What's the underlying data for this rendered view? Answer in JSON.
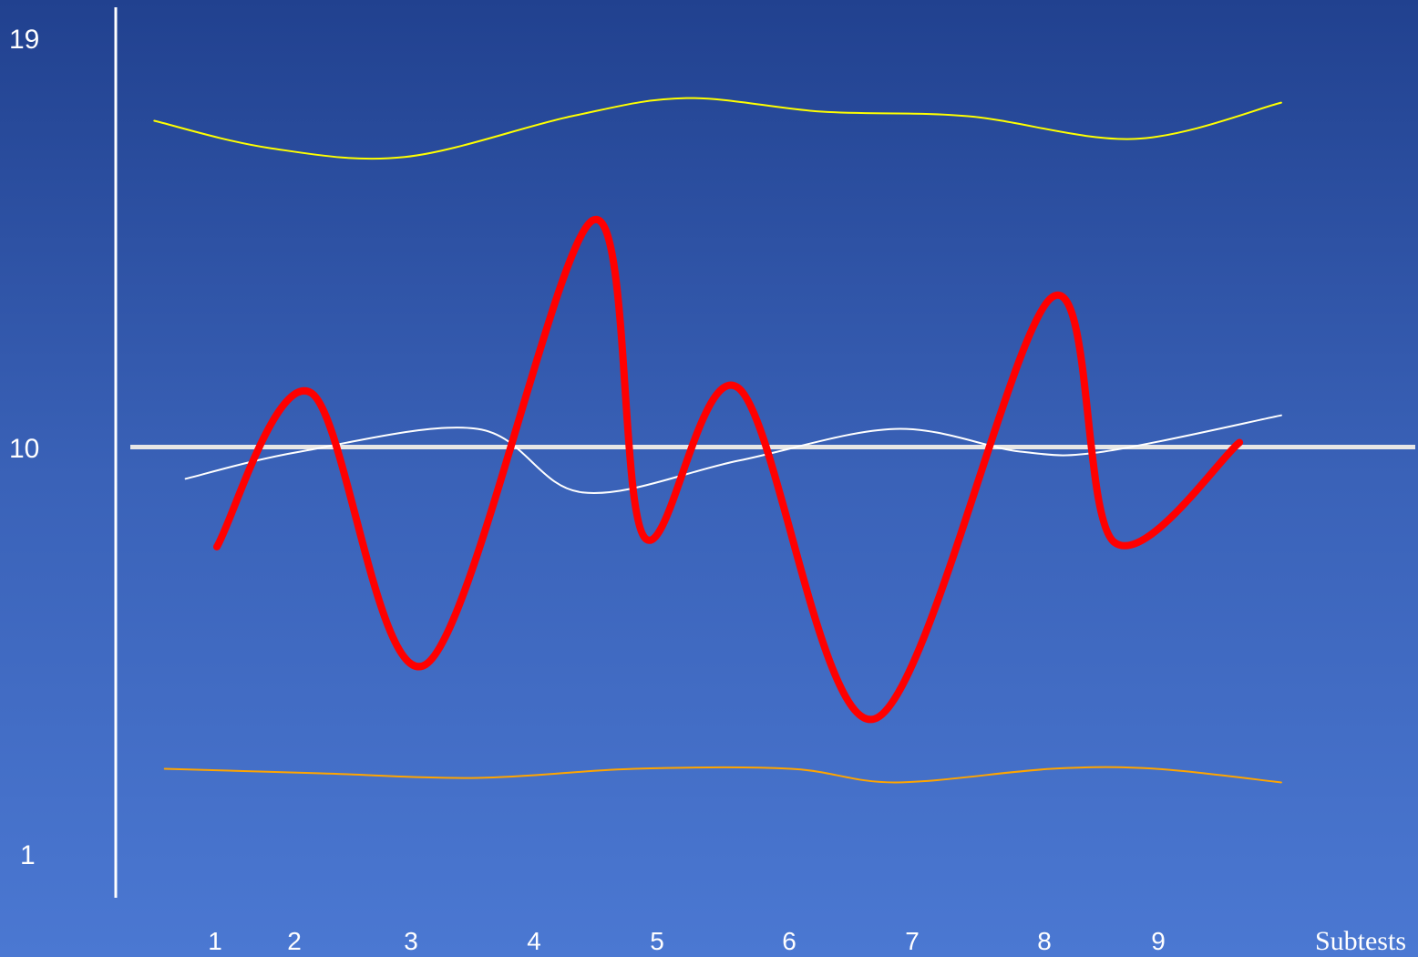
{
  "chart_data": {
    "type": "line",
    "title": "",
    "xlabel": "Subtests",
    "ylabel": "",
    "ylim": [
      1,
      19
    ],
    "yticks": [
      19,
      10,
      1
    ],
    "categories": [
      "1",
      "2",
      "3",
      "4",
      "5",
      "6",
      "7",
      "8",
      "9"
    ],
    "reference_value": 10,
    "legend": "none",
    "grid": false,
    "series": [
      {
        "color": "#ff0000",
        "style": "thick",
        "x": [
          1,
          1.9,
          3,
          4.6,
          5.1,
          6,
          7.3,
          9,
          9.6,
          10.8
        ],
        "y": [
          7.8,
          11.2,
          5.2,
          15.0,
          8.0,
          11.3,
          4.0,
          13.3,
          7.9,
          10.1
        ]
      },
      {
        "color": "#ffffff",
        "style": "thin",
        "x": [
          0.7,
          1.8,
          3.5,
          4.5,
          6,
          7.5,
          8.7,
          9.5,
          11.2
        ],
        "y": [
          9.3,
          9.9,
          10.4,
          9.0,
          9.7,
          10.4,
          9.9,
          9.9,
          10.7
        ]
      },
      {
        "color": "#ffff00",
        "style": "thin",
        "x": [
          0.4,
          1.5,
          2.8,
          4.4,
          5.5,
          6.8,
          8.2,
          9.8,
          11.2
        ],
        "y": [
          17.2,
          16.6,
          16.4,
          17.3,
          17.7,
          17.4,
          17.3,
          16.8,
          17.6
        ]
      },
      {
        "color": "#ffa500",
        "style": "thin",
        "x": [
          0.5,
          2,
          3.5,
          5,
          6.5,
          7.5,
          9,
          10,
          11.2
        ],
        "y": [
          2.9,
          2.8,
          2.7,
          2.9,
          2.9,
          2.6,
          2.9,
          2.9,
          2.6
        ]
      }
    ]
  }
}
